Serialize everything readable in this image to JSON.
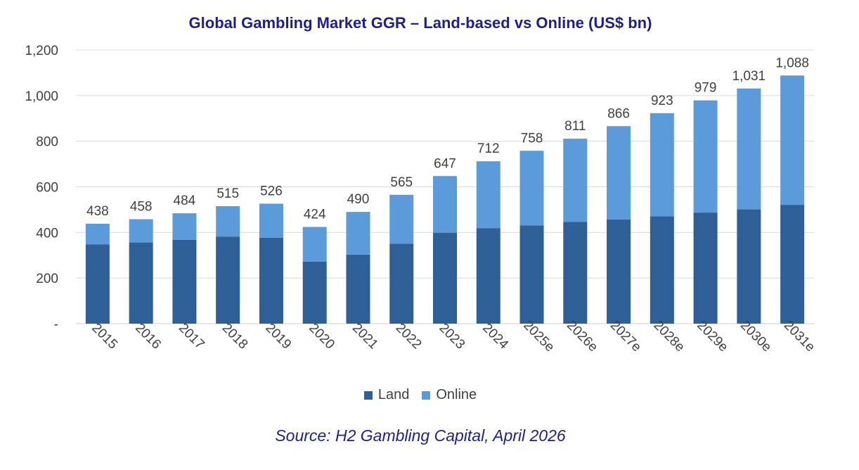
{
  "chart_data": {
    "type": "bar",
    "stacked": true,
    "title": "Global Gambling Market GGR – Land-based vs Online (US$ bn)",
    "categories": [
      "2015",
      "2016",
      "2017",
      "2018",
      "2019",
      "2020",
      "2021",
      "2022",
      "2023",
      "2024",
      "2025e",
      "2026e",
      "2027e",
      "2028e",
      "2029e",
      "2030e",
      "2031e"
    ],
    "series": [
      {
        "name": "Land",
        "color": "#2e5f96",
        "values": [
          347,
          356,
          368,
          381,
          377,
          272,
          303,
          351,
          399,
          419,
          431,
          446,
          457,
          471,
          487,
          501,
          521
        ]
      },
      {
        "name": "Online",
        "color": "#5b9bd9",
        "values": [
          91,
          102,
          116,
          134,
          149,
          152,
          187,
          214,
          248,
          293,
          327,
          365,
          409,
          452,
          492,
          530,
          567
        ]
      }
    ],
    "totals": [
      438,
      458,
      484,
      515,
      526,
      424,
      490,
      565,
      647,
      712,
      758,
      811,
      866,
      923,
      979,
      1031,
      1088
    ],
    "total_labels": [
      "438",
      "458",
      "484",
      "515",
      "526",
      "424",
      "490",
      "565",
      "647",
      "712",
      "758",
      "811",
      "866",
      "923",
      "979",
      "1,031",
      "1,088"
    ],
    "yticks": [
      {
        "value": 0,
        "label": "-"
      },
      {
        "value": 200,
        "label": "200"
      },
      {
        "value": 400,
        "label": "400"
      },
      {
        "value": 600,
        "label": "600"
      },
      {
        "value": 800,
        "label": "800"
      },
      {
        "value": 1000,
        "label": "1,000"
      },
      {
        "value": 1200,
        "label": "1,200"
      }
    ],
    "ylim": [
      0,
      1200
    ],
    "grid": true,
    "legend_position": "bottom",
    "source": "Source: H2 Gambling Capital, April 2026"
  }
}
